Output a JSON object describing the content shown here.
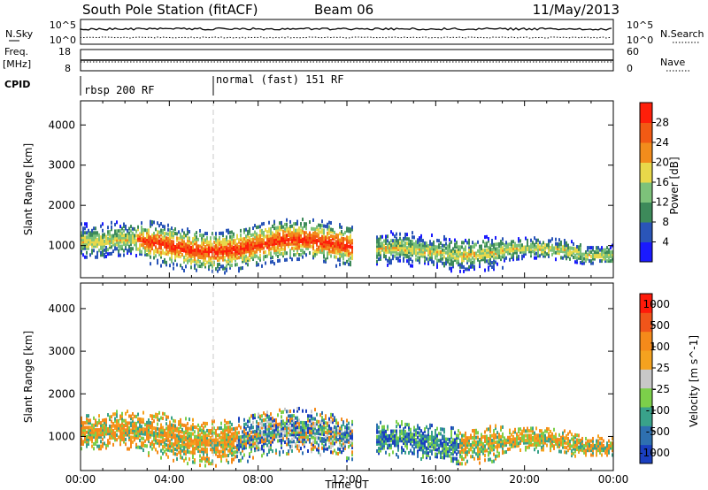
{
  "header": {
    "station": "South Pole Station (fitACF)",
    "beam": "Beam 06",
    "date": "11/May/2013"
  },
  "side_labels": {
    "nsky": "N.Sky",
    "freq": "Freq.",
    "freq_unit": "[MHz]",
    "cpid": "CPID",
    "nsearch": "N.Search",
    "nave": "Nave"
  },
  "top_axis_ticks": {
    "noise_left_hi": "10^5",
    "noise_left_lo": "10^0",
    "noise_right_hi": "10^5",
    "noise_right_lo": "10^0",
    "freq_hi": "18",
    "freq_lo": "8",
    "nave_hi": "60",
    "nave_lo": "0"
  },
  "cpid": [
    {
      "label": "rbsp 200 RF",
      "start_hour": 0
    },
    {
      "label": "normal (fast) 151 RF",
      "start_hour": 6
    }
  ],
  "chart_data": [
    {
      "type": "heatmap",
      "name": "power",
      "title": "",
      "xlabel": "",
      "ylabel": "Slant Range [km]",
      "xlim": [
        0,
        24
      ],
      "ylim": [
        200,
        4600
      ],
      "colorbar_label": "Power [dB]",
      "colorbar_ticks": [
        "4",
        "8",
        "12",
        "16",
        "20",
        "24",
        "28"
      ],
      "colorbar_colors": [
        "#1a1aff",
        "#2a55b8",
        "#3d8a5a",
        "#7dc27a",
        "#e8d84a",
        "#f28c1c",
        "#f25a14",
        "#ff1f0a"
      ]
    },
    {
      "type": "heatmap",
      "name": "velocity",
      "title": "",
      "xlabel": "Time UT",
      "ylabel": "Slant Range [km]",
      "xlim": [
        0,
        24
      ],
      "ylim": [
        200,
        4600
      ],
      "colorbar_label": "Velocity [m s^-1]",
      "colorbar_ticks": [
        "1000",
        "500",
        "100",
        "25",
        "-25",
        "-100",
        "-500",
        "-1000"
      ],
      "colorbar_colors": [
        "#1a3fbf",
        "#2e70b0",
        "#39a28a",
        "#7ccf4a",
        "#c8c8c8",
        "#f5a21f",
        "#f58a1a",
        "#f0551a",
        "#ff1a0a"
      ]
    }
  ],
  "x_ticks": [
    "00:00",
    "04:00",
    "08:00",
    "12:00",
    "16:00",
    "20:00",
    "00:00"
  ],
  "y_ticks": [
    "1000",
    "2000",
    "3000",
    "4000"
  ],
  "xlabel": "Time UT",
  "ylabel": "Slant Range [km]"
}
